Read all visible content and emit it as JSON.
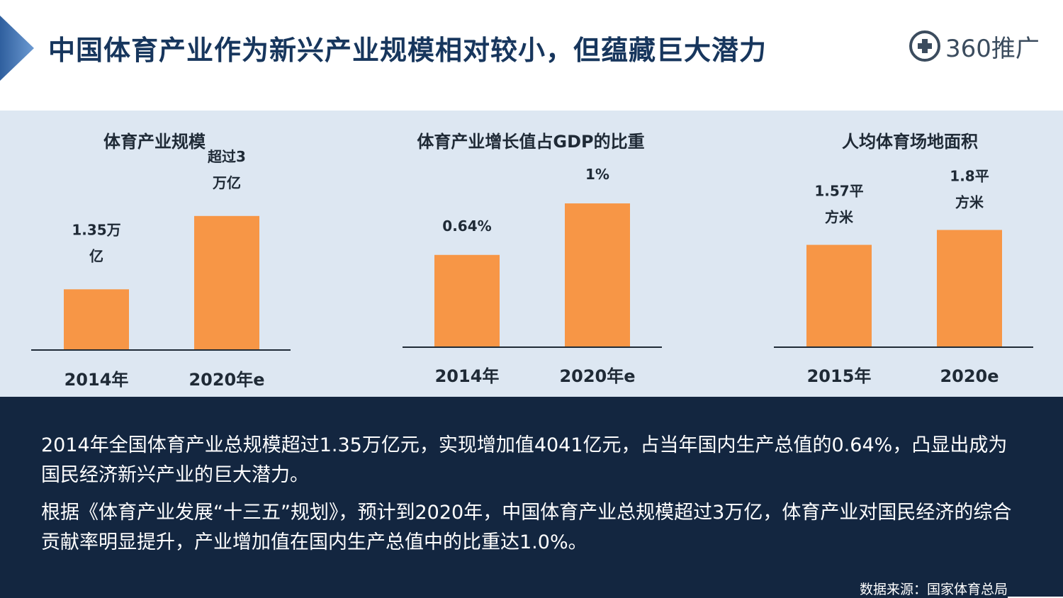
{
  "header": {
    "title": "中国体育产业作为新兴产业规模相对较小，但蕴藏巨大潜力",
    "logo_text": "360推广",
    "accent_color": "#4a7fc1",
    "title_color": "#17365d"
  },
  "chart_data": [
    {
      "type": "bar",
      "title": "体育产业规模",
      "categories": [
        "2014年",
        "2020年e"
      ],
      "values": [
        1.35,
        3
      ],
      "data_labels": [
        [
          "1.35万",
          "亿"
        ],
        [
          "超过3",
          "万亿"
        ]
      ],
      "unit": "万亿",
      "ylim": [
        0,
        3.3
      ],
      "bar_color": "#f79646"
    },
    {
      "type": "bar",
      "title": "体育产业增长值占GDP的比重",
      "categories": [
        "2014年",
        "2020年e"
      ],
      "values": [
        0.64,
        1.0
      ],
      "data_labels": [
        [
          "0.64%"
        ],
        [
          "1%"
        ]
      ],
      "unit": "%",
      "ylim": [
        0,
        1.04
      ],
      "bar_color": "#f79646"
    },
    {
      "type": "bar",
      "title": "人均体育场地面积",
      "categories": [
        "2015年",
        "2020e"
      ],
      "values": [
        1.57,
        1.8
      ],
      "data_labels": [
        [
          "1.57平",
          "方米"
        ],
        [
          "1.8平",
          "方米"
        ]
      ],
      "unit": "平方米",
      "ylim": [
        0,
        2.2
      ],
      "bar_color": "#f79646"
    }
  ],
  "summary": {
    "paragraph1": "2014年全国体育产业总规模超过1.35万亿元，实现增加值4041亿元，占当年国内生产总值的0.64%，凸显出成为国民经济新兴产业的巨大潜力。",
    "paragraph2": "根据《体育产业发展“十三五”规划》，预计到2020年，中国体育产业总规模超过3万亿，体育产业对国民经济的综合贡献率明显提升，产业增加值在国内生产总值中的比重达1.0%。",
    "source": "数据来源：国家体育总局"
  }
}
